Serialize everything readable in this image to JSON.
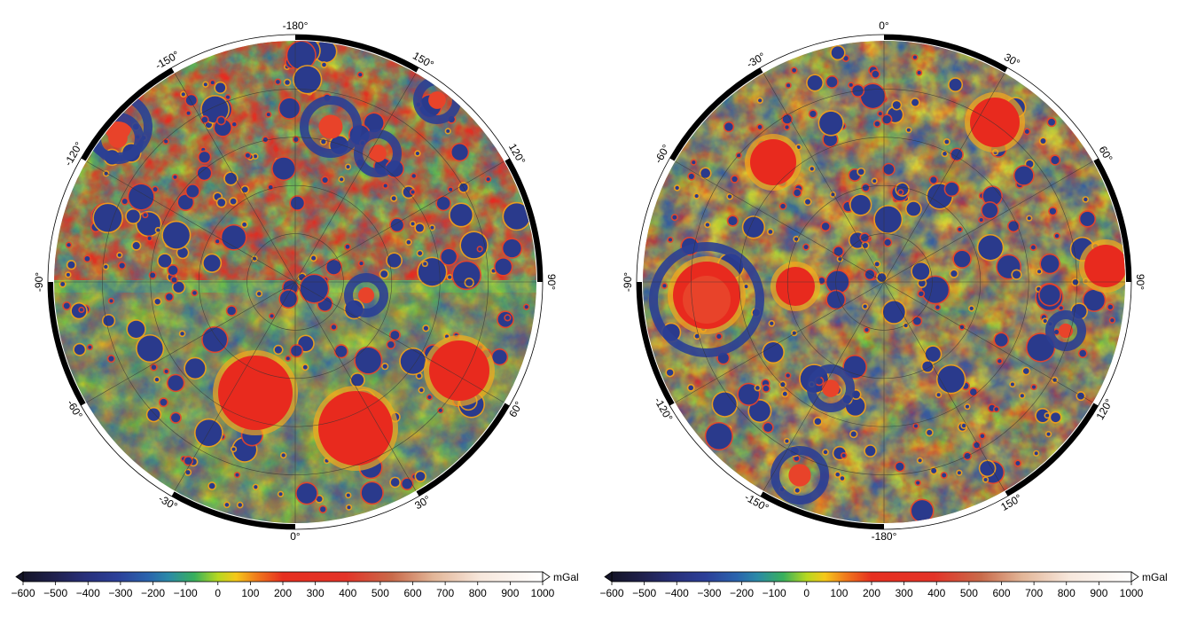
{
  "maps": [
    {
      "name": "north-pole-map",
      "lon_labels": [
        "-180°",
        "150°",
        "120°",
        "90°",
        "60°",
        "30°",
        "0°",
        "-30°",
        "-60°",
        "-90°",
        "-120°",
        "-150°"
      ]
    },
    {
      "name": "south-pole-map",
      "lon_labels": [
        "0°",
        "30°",
        "60°",
        "90°",
        "120°",
        "150°",
        "-180°",
        "-150°",
        "-120°",
        "-90°",
        "-60°",
        "-30°"
      ]
    }
  ],
  "colorbar": {
    "unit": "mGal",
    "ticks": [
      "-600",
      "-500",
      "-400",
      "-300",
      "-200",
      "-100",
      "0",
      "100",
      "200",
      "300",
      "400",
      "500",
      "600",
      "700",
      "800",
      "900",
      "1000"
    ],
    "colors": [
      "#1a1a3a",
      "#262a5e",
      "#2c3a86",
      "#2d56a8",
      "#2a7fb2",
      "#2fa88c",
      "#58bf3a",
      "#c8d81f",
      "#f4b51a",
      "#f0601a",
      "#e42c22",
      "#e8332a",
      "#d65a3a",
      "#c98a63",
      "#e8c3a6",
      "#f6e4d8",
      "#ffffff"
    ]
  }
}
